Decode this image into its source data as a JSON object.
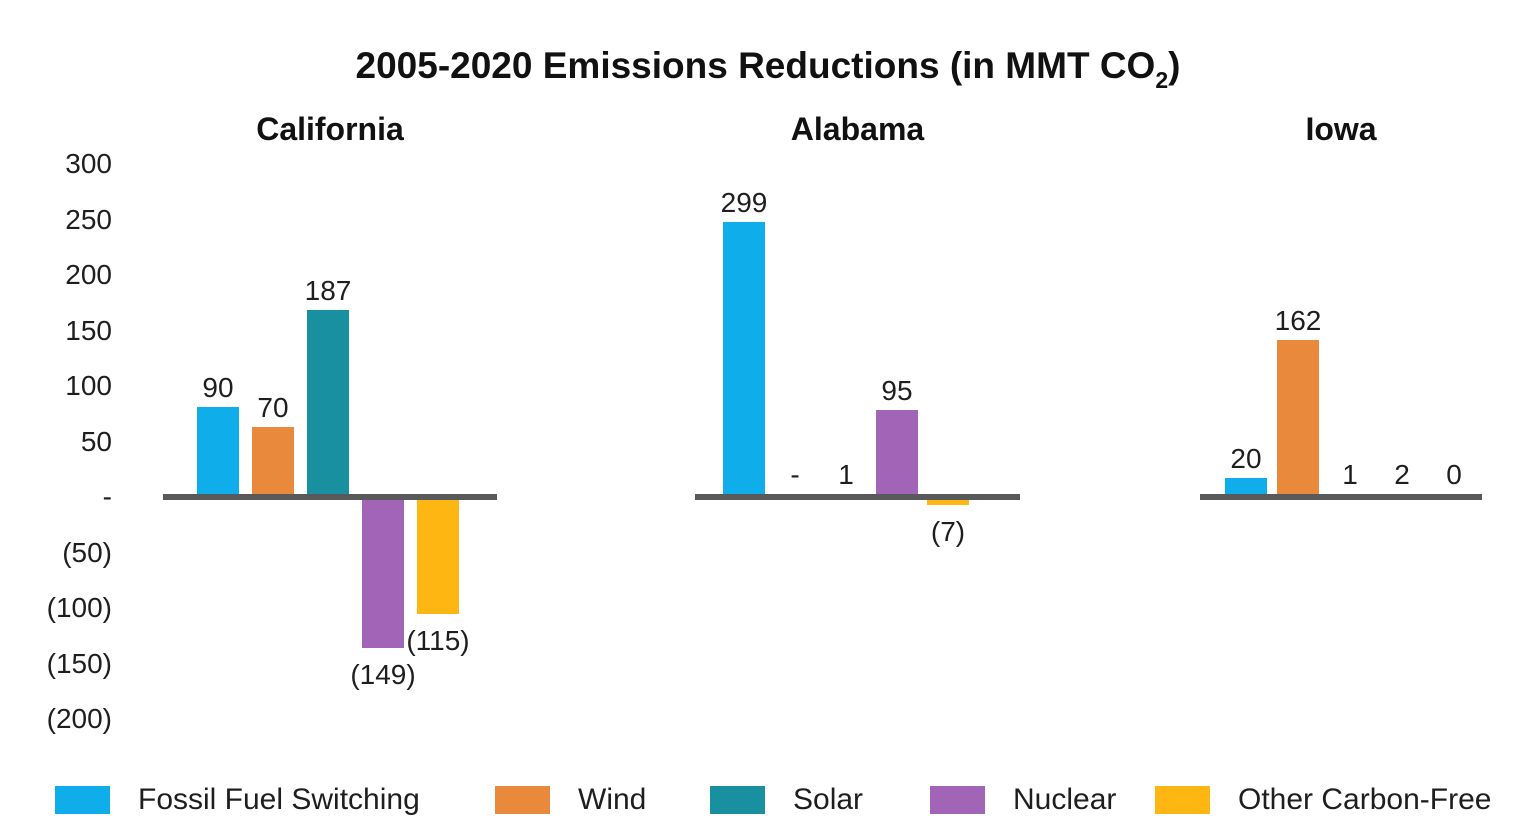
{
  "chart_data": {
    "type": "bar",
    "title": {
      "main": "2005-2020 Emissions Reductions (in MMT CO",
      "subscript": "2",
      "suffix": ")"
    },
    "y_axis": {
      "tick_labels": [
        "300",
        "250",
        "200",
        "150",
        "100",
        "50",
        "-",
        "(50)",
        "(100)",
        "(150)",
        "(200)"
      ],
      "tick_values": [
        300,
        250,
        200,
        150,
        100,
        50,
        0,
        -50,
        -100,
        -150,
        -200
      ],
      "ylim": [
        -200,
        300
      ],
      "grid": false
    },
    "series": [
      {
        "name": "Fossil Fuel Switching",
        "color": "#0FADEA"
      },
      {
        "name": "Wind",
        "color": "#E8893C"
      },
      {
        "name": "Solar",
        "color": "#19909F"
      },
      {
        "name": "Nuclear",
        "color": "#A164B6"
      },
      {
        "name": "Other Carbon-Free",
        "color": "#FEB612"
      }
    ],
    "groups": [
      {
        "name": "California",
        "values": [
          90,
          70,
          187,
          -149,
          -115
        ],
        "display_labels": [
          "90",
          "70",
          "187",
          "(149)",
          "(115)"
        ]
      },
      {
        "name": "Alabama",
        "values": [
          299,
          0,
          1,
          95,
          -7
        ],
        "display_labels": [
          "299",
          "-",
          "1",
          "95",
          "(7)"
        ]
      },
      {
        "name": "Iowa",
        "values": [
          20,
          162,
          1,
          2,
          0
        ],
        "display_labels": [
          "20",
          "162",
          "1",
          "2",
          "0"
        ]
      }
    ],
    "legend_position": "bottom",
    "axis_line_color": "#58595B",
    "text_color": "#1E1E1E",
    "background": "#FFFFFF"
  }
}
